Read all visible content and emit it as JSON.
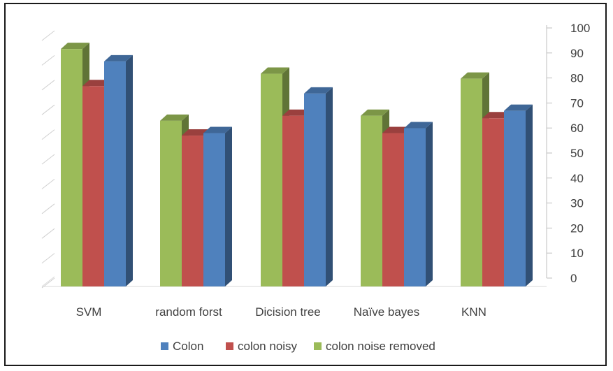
{
  "chart_data": {
    "type": "bar",
    "style": "3d-clustered-column",
    "categories": [
      "SVM",
      "random forst",
      "Dicision tree",
      "Naïve bayes",
      "KNN"
    ],
    "series": [
      {
        "name": "colon noise removed",
        "color": "#9bbb59",
        "values": [
          96,
          67,
          86,
          69,
          84
        ]
      },
      {
        "name": "colon noisy",
        "color": "#c0504d",
        "values": [
          81,
          61,
          69,
          62,
          68
        ]
      },
      {
        "name": "Colon",
        "color": "#4f81bd",
        "values": [
          91,
          62,
          78,
          64,
          71
        ]
      }
    ],
    "legend_order": [
      "Colon",
      "colon noisy",
      "colon noise removed"
    ],
    "ylim": [
      0,
      100
    ],
    "yticks": [
      "0",
      "10",
      "20",
      "30",
      "40",
      "50",
      "60",
      "70",
      "80",
      "90",
      "100"
    ],
    "y_axis_position": "right",
    "legend_position": "bottom",
    "grid": false
  }
}
